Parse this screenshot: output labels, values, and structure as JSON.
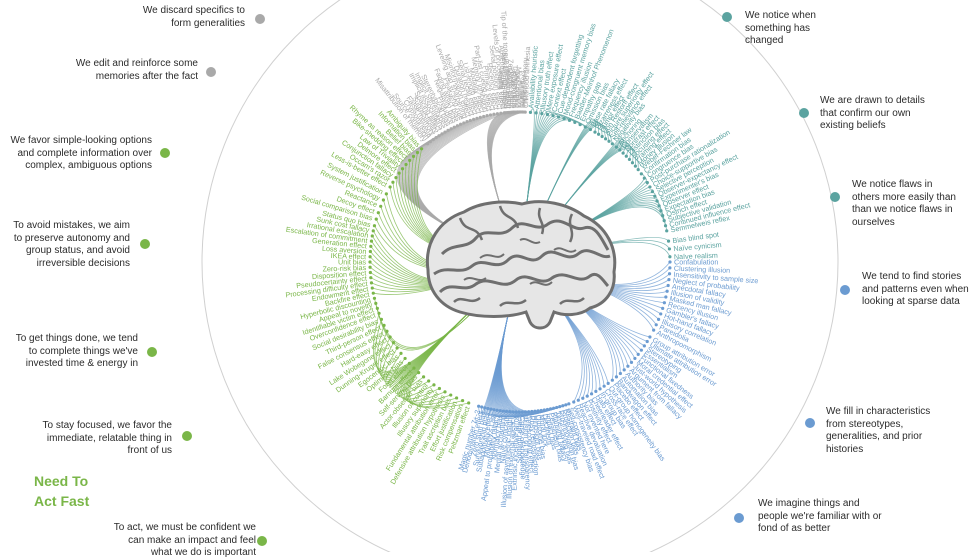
{
  "headline": "Need To\nAct Fast",
  "colors": {
    "gray": "#a9a9a9",
    "green": "#7ab648",
    "teal": "#5ba3a0",
    "blue": "#6b9bd1",
    "ring": "#cfcfcf",
    "brain": "#7a7a7a"
  },
  "categories": [
    {
      "text": "We discard specifics to form generalities",
      "color": "gray"
    },
    {
      "text": "We edit and reinforce some memories after the fact",
      "color": "gray"
    },
    {
      "text": "We favor simple-looking options and complete information over complex, ambiguous options",
      "color": "green"
    },
    {
      "text": "To avoid mistakes, we aim to preserve autonomy and group status, and avoid irreversible decisions",
      "color": "green"
    },
    {
      "text": "To get things done, we tend to complete things we've invested time & energy in",
      "color": "green"
    },
    {
      "text": "To stay focused, we favor the immediate, relatable thing in front of us",
      "color": "green"
    },
    {
      "text": "To act, we must be confident we can make an impact and feel what we do is important",
      "color": "green"
    },
    {
      "text": "We notice when something has changed",
      "color": "teal"
    },
    {
      "text": "We are drawn to details that confirm our own existing beliefs",
      "color": "teal"
    },
    {
      "text": "We notice flaws in others more easily than than we notice flaws in ourselves",
      "color": "teal"
    },
    {
      "text": "We tend to find stories and patterns even when looking at sparse data",
      "color": "blue"
    },
    {
      "text": "We fill in characteristics from stereotypes, generalities, and prior histories",
      "color": "blue"
    },
    {
      "text": "We imagine things and people we're familiar with or fond of as better",
      "color": "blue"
    }
  ],
  "groups": [
    {
      "color": "gray",
      "items": [
        "Misattribution of memory",
        "Source confusion",
        "Cryptomnesia",
        "False memory",
        "Suggestibility",
        "Spacing effect",
        "Implicit associations",
        "Implicit stereotypes",
        "Stereotypical bias",
        "Prejudice",
        "Negativity bias",
        "Fading affect bias",
        "Peak-end rule",
        "Leveling and sharpening",
        "Misinformation effect",
        "Duration neglect",
        "Serial recall effect",
        "List-length effect",
        "Modality effect",
        "Memory inhibition",
        "Part-list cueing effect",
        "Primacy effect",
        "Recency effect",
        "Serial position effect",
        "Suffix effect"
      ]
    },
    {
      "color": "green",
      "items": [
        "Less-is-better effect",
        "Occam's razor",
        "Conjunction fallacy",
        "Delmore effect",
        "Law of Triviality",
        "Bike-shedding effect",
        "Rhyme as reason effect",
        "Belief bias",
        "Information bias",
        "Ambiguity bias"
      ]
    },
    {
      "color": "green",
      "items": [
        "Status quo bias",
        "Social comparison bias",
        "Decoy effect",
        "Reactance",
        "Reverse psychology",
        "System justification"
      ]
    },
    {
      "color": "green",
      "items": [
        "Backfire effect",
        "Endowment effect",
        "Processing difficulty effect",
        "Pseudocertainty effect",
        "Disposition effect",
        "Zero-risk bias",
        "Unit bias",
        "IKEA effect",
        "Loss aversion",
        "Generation effect",
        "Escalation of commitment",
        "Irrational escalation",
        "Sunk cost fallacy"
      ]
    },
    {
      "color": "green",
      "items": [
        "Identifiable victim effect",
        "Appeal to novelty",
        "Hyperbolic discounting"
      ]
    },
    {
      "color": "green",
      "items": [
        "Peltzman effect",
        "Risk compensation",
        "Effort justification",
        "Trait ascription bias",
        "Defensive attribution hypothesis",
        "Fundamental attribution error",
        "Illusory superiority",
        "Illusion of control",
        "Actor-observer bias",
        "Self-serving bias",
        "Barnum effect",
        "Forer effect",
        "Optimism bias",
        "Egocentric bias",
        "Dunning-Kruger effect",
        "Lake Wobegone effect",
        "Hard-easy effect",
        "False consensus effect",
        "Third-person effect",
        "Social desirability bias",
        "Overconfidence effect"
      ]
    },
    {
      "color": "blue",
      "items": [
        "Self-consistency bias",
        "Restraint bias",
        "Projection bias",
        "Pro-innovation bias",
        "Time-saving bias",
        "Planning fallacy",
        "Pessimism bias",
        "Impact bias",
        "Declinism",
        "Moral luck",
        "Outcome bias",
        "Hindsight bias",
        "Rosy retrospection",
        "Telescoping effect",
        "Illusion of transparency",
        "Curse of knowledge",
        "Spotlight effect",
        "Extrinsic incentive error",
        "Illusion of external agency",
        "Illusion of asymmetric insight",
        "Naïve cynicism",
        "Mental accounting",
        "Normalcy bias",
        "Appeal to probability fallacy",
        "Murphy's Law",
        "Subadditivity effect",
        "Survivorship bias",
        "Zero sum bias",
        "Denomination effect",
        "Magic number 7+-2"
      ]
    },
    {
      "color": "blue",
      "items": [
        "Out-group homogeneity bias",
        "Cross-race effect",
        "In-group bias",
        "Halo effect",
        "Cheerleader effect",
        "Positivity effect",
        "Not invented here",
        "Reactive devaluation",
        "Well-traveled road effect"
      ]
    },
    {
      "color": "blue",
      "items": [
        "Group attribution error",
        "Ultimate attribution error",
        "Stereotyping",
        "Essentialism",
        "Functional fixedness",
        "Moral credential effect",
        "Just-world hypothesis",
        "Argument from fallacy",
        "Authority bias",
        "Automation bias",
        "Bandwagon effect",
        "Placebo effect"
      ]
    },
    {
      "color": "blue",
      "items": [
        "Confabulation",
        "Clustering illusion",
        "Insensitivity to sample size",
        "Neglect of probability",
        "Anecdotal fallacy",
        "Illusion of validity",
        "Masked man fallacy",
        "Recency illusion",
        "Gambler's fallacy",
        "Hot-hand fallacy",
        "Illusory correlation",
        "Pareidolia",
        "Anthropomorphism"
      ]
    },
    {
      "color": "teal",
      "items": [
        "Bias blind spot",
        "Naïve cynicism",
        "Naïve realism"
      ]
    },
    {
      "color": "teal",
      "items": [
        "Confirmation bias",
        "Congruence bias",
        "Post-purchase rationalization",
        "Choice-supportive bias",
        "Selective perception",
        "Observer-expectancy effect",
        "Experimenter's bias",
        "Observer effect",
        "Expectation bias",
        "Ostrich effect",
        "Subjective validation",
        "Continued influence effect",
        "Semmelweis reflex"
      ]
    },
    {
      "color": "teal",
      "items": [
        "Anchoring",
        "Conservatism",
        "Contrast effect",
        "Distinction bias",
        "Focusing effect",
        "Framing effect",
        "Money illusion",
        "Weber-Fechner law"
      ]
    },
    {
      "color": "teal",
      "items": [
        "Bizarreness effect",
        "Humor effect",
        "Von Restorff effect",
        "Picture superiority effect",
        "Self-relevance effect",
        "Negativity bias"
      ]
    },
    {
      "color": "teal",
      "items": [
        "Availability heuristic",
        "Attentional bias",
        "Illusory truth effect",
        "Mere exposure effect",
        "Context effect",
        "Cue-dependent forgetting",
        "Mood-congruent memory bias",
        "Frequency illusion",
        "Baader-Meinhof Phenomenon",
        "Empathy gap",
        "Omission bias",
        "Base rate fallacy"
      ]
    },
    {
      "color": "gray",
      "items": [
        "Levels of processing effect",
        "Testing effect",
        "Absent-mindedness",
        "Next-in-line effect",
        "Tip of the tongue phenomenon",
        "Google effect",
        "Zeigarnik effect",
        "Bias to lists",
        "Tachypsychia",
        "Telescoping",
        "Mood effects",
        "Modality",
        "Suffix effect",
        "Implicit memory",
        "Childhood amnesia"
      ]
    }
  ]
}
